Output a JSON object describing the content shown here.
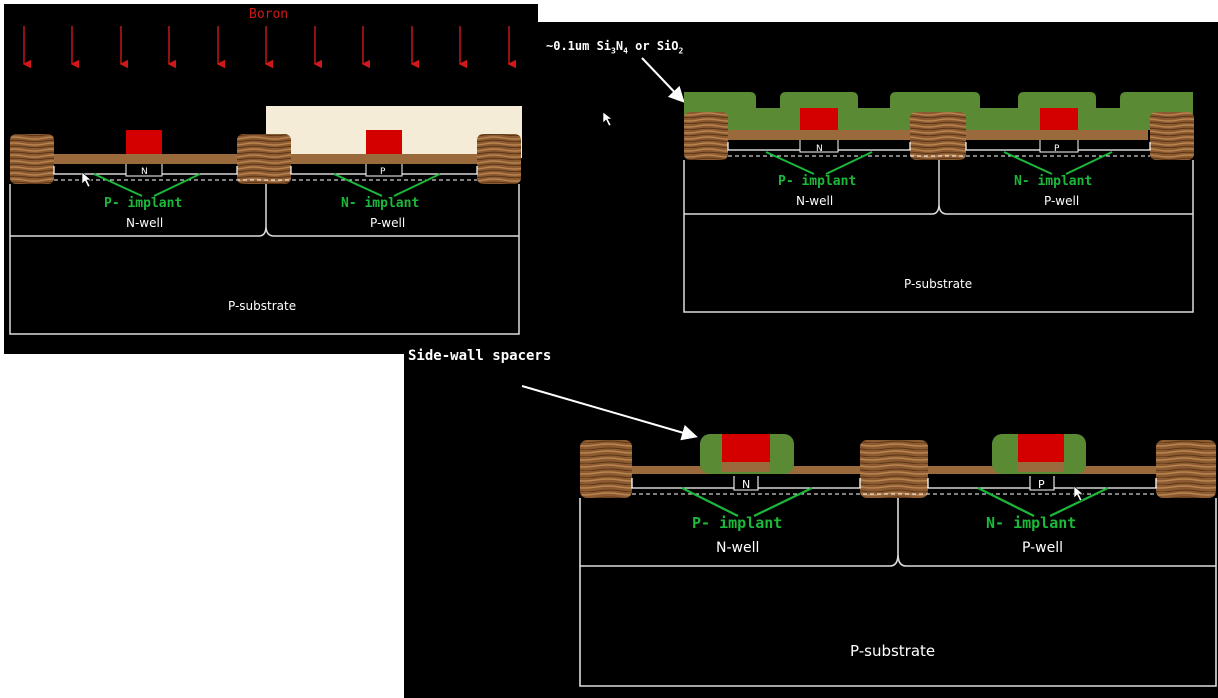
{
  "panel_a": {
    "dopant": "Boron",
    "implant_left": "P- implant",
    "implant_right": "N- implant",
    "well_left": "N-well",
    "well_right": "P-well",
    "substrate": "P-substrate",
    "region_left": "N",
    "region_right": "P"
  },
  "panel_b": {
    "film_pre": "~0.1um Si",
    "film_sub1": "3",
    "film_mid1": "N",
    "film_sub2": "4",
    "film_mid2": " or SiO",
    "film_sub3": "2",
    "implant_left": "P- implant",
    "implant_right": "N- implant",
    "well_left": "N-well",
    "well_right": "P-well",
    "substrate": "P-substrate",
    "region_left": "N",
    "region_right": "P"
  },
  "panel_c": {
    "spacers": "Side-wall spacers",
    "implant_left": "P- implant",
    "implant_right": "N- implant",
    "well_left": "N-well",
    "well_right": "P-well",
    "substrate": "P-substrate",
    "region_left": "N",
    "region_right": "P"
  },
  "colors": {
    "oxide_wood": "#8b5a30",
    "gate_poly": "#d40000",
    "nitride_film": "#5b8a35",
    "photoresist": "#f5ecd8",
    "implant_green": "#1bb83a",
    "boron_red": "#d01818"
  }
}
